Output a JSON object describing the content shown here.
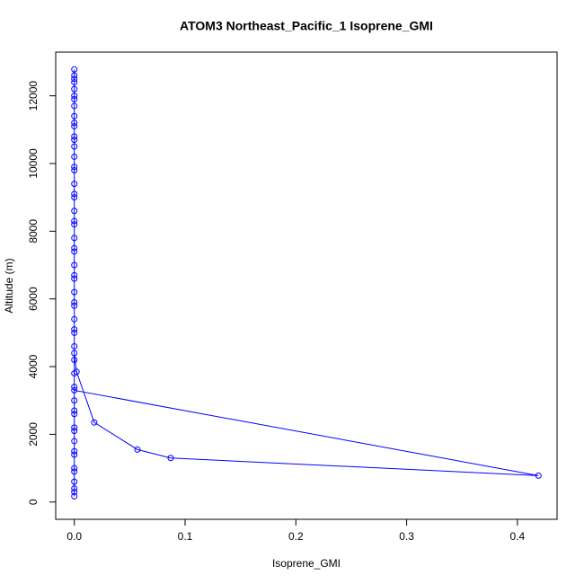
{
  "chart_data": {
    "type": "line",
    "title": "ATOM3 Northeast_Pacific_1 Isoprene_GMI",
    "x_label": "Isoprene_GMI",
    "y_label": "Altitude (m)",
    "color": "#0000ff",
    "x": [
      0,
      0,
      0,
      0,
      0,
      0,
      0,
      0,
      0,
      0,
      0,
      0,
      0,
      0,
      0,
      0,
      0,
      0,
      0,
      0,
      0,
      0,
      0,
      0,
      0,
      0,
      0,
      0,
      0,
      0,
      0,
      0,
      0,
      0,
      0,
      0,
      0,
      0,
      0,
      0,
      0,
      0,
      0,
      0.419,
      0.087,
      0.057,
      0.018,
      0.002,
      0,
      0,
      0,
      0,
      0,
      0,
      0,
      0,
      0,
      0,
      0,
      0
    ],
    "values": [
      12780,
      12600,
      12400,
      12200,
      12000,
      11700,
      11400,
      11100,
      10800,
      10500,
      10200,
      9800,
      9400,
      9000,
      8600,
      8200,
      7800,
      7400,
      7000,
      6600,
      6200,
      5800,
      5400,
      5000,
      4600,
      4200,
      3800,
      3400,
      3000,
      2600,
      2200,
      1800,
      1400,
      1000,
      600,
      300,
      170,
      400,
      900,
      1500,
      2100,
      2700,
      3300,
      780,
      1300,
      1550,
      2350,
      3850,
      4400,
      5100,
      5900,
      6700,
      7500,
      8300,
      9100,
      9900,
      10700,
      11200,
      11900,
      12500
    ],
    "xlim": [
      -0.0168,
      0.4358
    ],
    "ylim": [
      -511,
      13291
    ],
    "xticks": [
      {
        "value": 0,
        "label": "0.0"
      },
      0.1,
      0.2,
      0.3,
      0.4
    ],
    "yticks": [
      0,
      2000,
      4000,
      6000,
      8000,
      10000,
      12000
    ]
  }
}
